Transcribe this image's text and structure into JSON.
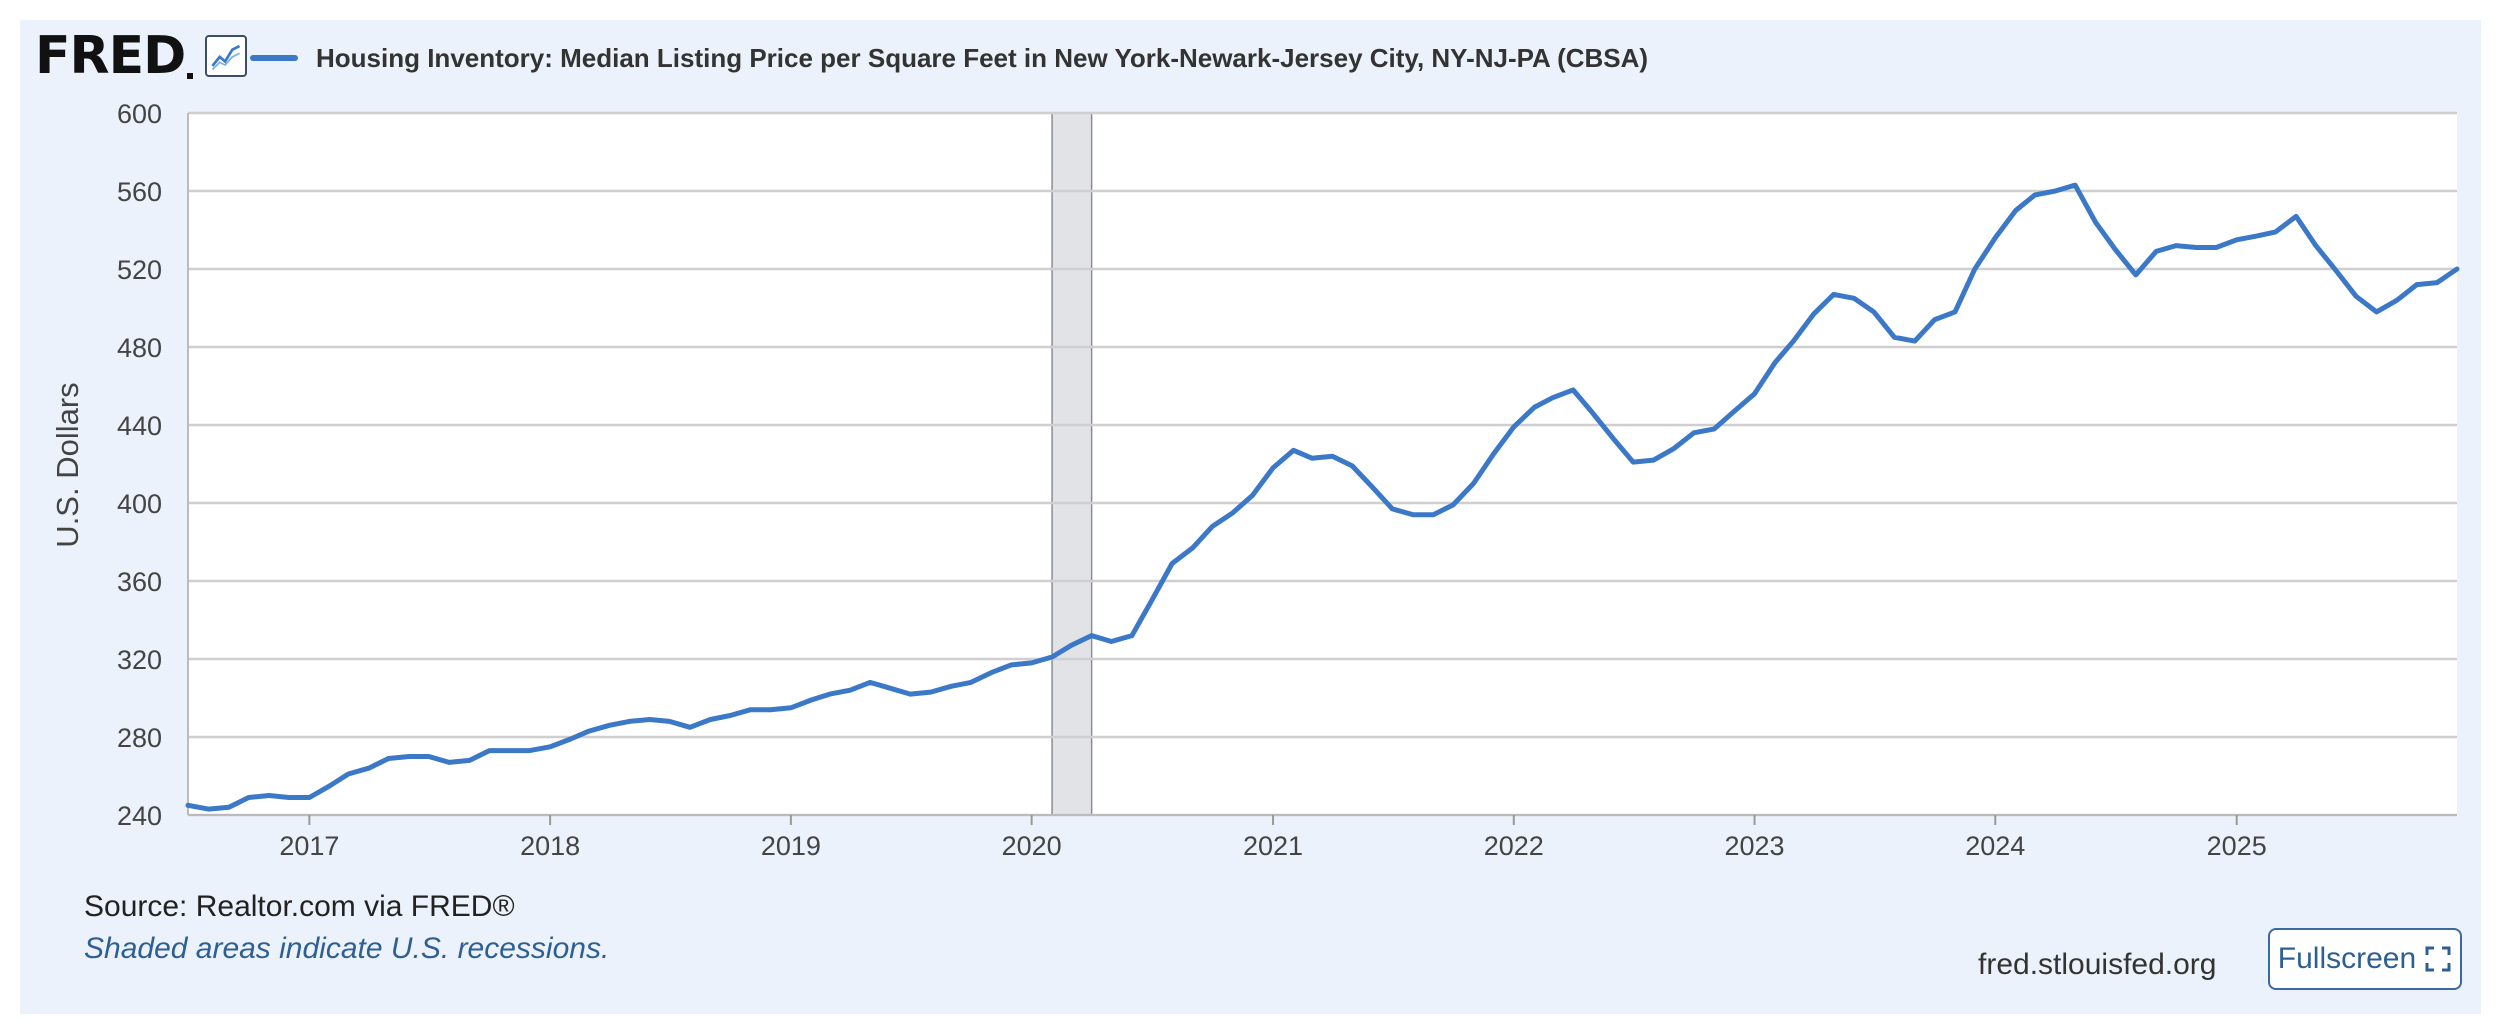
{
  "header": {
    "logo_text": "FRED",
    "logo_icon": "line-graph-icon"
  },
  "chart_data": {
    "type": "line",
    "title": "",
    "ylabel": "U.S. Dollars",
    "xlabel": "",
    "ylim": [
      240,
      600
    ],
    "yticks": [
      240,
      280,
      320,
      360,
      400,
      440,
      480,
      520,
      560,
      600
    ],
    "xtick_labels": [
      "2017",
      "2018",
      "2019",
      "2020",
      "2021",
      "2022",
      "2023",
      "2024",
      "2025"
    ],
    "xrange": [
      "2016-07-01",
      "2025-12-01"
    ],
    "grid": true,
    "legend_position": "top-left",
    "recession_shading": [
      {
        "start": "2020-02-01",
        "end": "2020-04-01"
      }
    ],
    "series": [
      {
        "name": "Housing Inventory: Median Listing Price per Square Feet in New York-Newark-Jersey City, NY-NJ-PA (CBSA)",
        "color": "#3c78c8",
        "x": [
          "2016-07",
          "2016-08",
          "2016-09",
          "2016-10",
          "2016-11",
          "2016-12",
          "2017-01",
          "2017-02",
          "2017-03",
          "2017-04",
          "2017-05",
          "2017-06",
          "2017-07",
          "2017-08",
          "2017-09",
          "2017-10",
          "2017-11",
          "2017-12",
          "2018-01",
          "2018-02",
          "2018-03",
          "2018-04",
          "2018-05",
          "2018-06",
          "2018-07",
          "2018-08",
          "2018-09",
          "2018-10",
          "2018-11",
          "2018-12",
          "2019-01",
          "2019-02",
          "2019-03",
          "2019-04",
          "2019-05",
          "2019-06",
          "2019-07",
          "2019-08",
          "2019-09",
          "2019-10",
          "2019-11",
          "2019-12",
          "2020-01",
          "2020-02",
          "2020-03",
          "2020-04",
          "2020-05",
          "2020-06",
          "2020-07",
          "2020-08",
          "2020-09",
          "2020-10",
          "2020-11",
          "2020-12",
          "2021-01",
          "2021-02",
          "2021-03",
          "2021-04",
          "2021-05",
          "2021-06",
          "2021-07",
          "2021-08",
          "2021-09",
          "2021-10",
          "2021-11",
          "2021-12",
          "2022-01",
          "2022-02",
          "2022-03",
          "2022-04",
          "2022-05",
          "2022-06",
          "2022-07",
          "2022-08",
          "2022-09",
          "2022-10",
          "2022-11",
          "2022-12",
          "2023-01",
          "2023-02",
          "2023-03",
          "2023-04",
          "2023-05",
          "2023-06",
          "2023-07",
          "2023-08",
          "2023-09",
          "2023-10",
          "2023-11",
          "2023-12",
          "2024-01",
          "2024-02",
          "2024-03",
          "2024-04",
          "2024-05",
          "2024-06",
          "2024-07",
          "2024-08",
          "2024-09",
          "2024-10",
          "2024-11",
          "2024-12",
          "2025-01",
          "2025-02",
          "2025-03",
          "2025-04",
          "2025-05",
          "2025-06",
          "2025-07",
          "2025-08",
          "2025-09",
          "2025-10",
          "2025-11",
          "2025-12"
        ],
        "y": [
          245,
          243,
          244,
          249,
          250,
          249,
          249,
          255,
          261,
          264,
          269,
          270,
          270,
          267,
          268,
          273,
          273,
          273,
          275,
          279,
          283,
          286,
          288,
          289,
          288,
          285,
          289,
          291,
          294,
          294,
          295,
          299,
          302,
          304,
          308,
          305,
          302,
          303,
          306,
          308,
          313,
          317,
          318,
          321,
          327,
          332,
          329,
          332,
          350,
          369,
          377,
          388,
          395,
          404,
          418,
          427,
          423,
          424,
          419,
          408,
          397,
          394,
          394,
          399,
          410,
          425,
          439,
          449,
          454,
          458,
          446,
          433,
          421,
          422,
          428,
          436,
          438,
          447,
          456,
          472,
          483,
          497,
          507,
          505,
          498,
          485,
          483,
          494,
          498,
          520,
          536,
          550,
          558,
          560,
          563,
          544,
          530,
          517,
          529,
          532,
          531,
          531,
          535,
          537,
          539,
          547,
          532,
          519,
          506,
          498,
          504,
          512,
          513,
          520
        ]
      }
    ]
  },
  "footer": {
    "source": "Source: Realtor.com via FRED®",
    "note": "Shaded areas indicate U.S. recessions.",
    "site": "fred.stlouisfed.org",
    "fullscreen_label": "Fullscreen",
    "fullscreen_icon": "expand-icon"
  }
}
